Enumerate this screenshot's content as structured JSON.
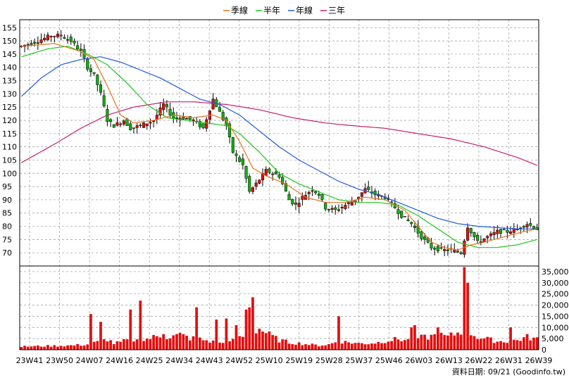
{
  "chart_data": {
    "type": "candlestick_with_volume",
    "legend": [
      {
        "name": "季線",
        "color": "#E8731E"
      },
      {
        "name": "半年",
        "color": "#1EC81E"
      },
      {
        "name": "年線",
        "color": "#1E5AE0"
      },
      {
        "name": "三年",
        "color": "#C81E6E"
      }
    ],
    "colors": {
      "up": "#E01010",
      "down": "#10B010",
      "grid": "#999999",
      "volume": "#E01010"
    },
    "price_axis": {
      "ylim": [
        65,
        158
      ],
      "ticks": [
        70,
        75,
        80,
        85,
        90,
        95,
        100,
        105,
        110,
        115,
        120,
        125,
        130,
        135,
        140,
        145,
        150,
        155
      ]
    },
    "volume_axis": {
      "ylim": [
        0,
        37500
      ],
      "ticks": [
        0,
        5000,
        10000,
        15000,
        20000,
        25000,
        30000,
        35000
      ],
      "tick_labels": [
        "0",
        "5,000",
        "10,000",
        "15,000",
        "20,000",
        "25,000",
        "30,000",
        "35,000"
      ]
    },
    "x_labels": [
      "23W41",
      "23W50",
      "24W07",
      "24W16",
      "24W25",
      "24W34",
      "24W43",
      "24W52",
      "25W10",
      "25W19",
      "25W28",
      "25W37",
      "25W46",
      "26W03",
      "26W13",
      "26W22",
      "26W31",
      "26W39"
    ],
    "weeks": 157,
    "close_keypoints": [
      [
        0,
        148
      ],
      [
        5,
        150
      ],
      [
        9,
        152
      ],
      [
        12,
        152
      ],
      [
        15,
        150
      ],
      [
        18,
        146
      ],
      [
        20,
        140
      ],
      [
        22,
        137
      ],
      [
        24,
        130
      ],
      [
        26,
        120
      ],
      [
        28,
        118
      ],
      [
        31,
        120
      ],
      [
        33,
        117
      ],
      [
        36,
        118
      ],
      [
        40,
        120
      ],
      [
        43,
        126
      ],
      [
        46,
        121
      ],
      [
        49,
        121
      ],
      [
        52,
        120
      ],
      [
        55,
        117
      ],
      [
        58,
        128
      ],
      [
        62,
        118
      ],
      [
        64,
        108
      ],
      [
        67,
        103
      ],
      [
        69,
        93
      ],
      [
        71,
        96
      ],
      [
        74,
        101
      ],
      [
        78,
        99
      ],
      [
        81,
        90
      ],
      [
        83,
        88
      ],
      [
        85,
        91
      ],
      [
        88,
        94
      ],
      [
        90,
        92
      ],
      [
        92,
        87
      ],
      [
        95,
        86
      ],
      [
        98,
        88
      ],
      [
        101,
        90
      ],
      [
        104,
        94
      ],
      [
        107,
        92
      ],
      [
        110,
        91
      ],
      [
        113,
        87
      ],
      [
        115,
        84
      ],
      [
        118,
        81
      ],
      [
        121,
        76
      ],
      [
        124,
        72
      ],
      [
        127,
        71
      ],
      [
        130,
        71
      ],
      [
        133,
        70
      ],
      [
        135,
        80
      ],
      [
        138,
        74
      ],
      [
        141,
        76
      ],
      [
        144,
        78
      ],
      [
        147,
        78
      ],
      [
        150,
        79
      ],
      [
        153,
        81
      ],
      [
        156,
        79
      ]
    ],
    "ma_quarter_keypoints": [
      [
        0,
        148
      ],
      [
        10,
        149
      ],
      [
        18,
        146
      ],
      [
        22,
        143
      ],
      [
        26,
        133
      ],
      [
        30,
        122
      ],
      [
        34,
        119
      ],
      [
        40,
        120
      ],
      [
        46,
        122
      ],
      [
        52,
        121
      ],
      [
        58,
        122
      ],
      [
        62,
        120
      ],
      [
        66,
        112
      ],
      [
        70,
        102
      ],
      [
        74,
        99
      ],
      [
        80,
        96
      ],
      [
        86,
        91
      ],
      [
        92,
        89
      ],
      [
        98,
        89
      ],
      [
        104,
        91
      ],
      [
        110,
        90
      ],
      [
        116,
        86
      ],
      [
        120,
        80
      ],
      [
        124,
        74
      ],
      [
        128,
        72
      ],
      [
        132,
        71
      ],
      [
        136,
        73
      ],
      [
        140,
        74
      ],
      [
        146,
        76
      ],
      [
        152,
        78
      ],
      [
        156,
        79
      ]
    ],
    "ma_half_keypoints": [
      [
        0,
        144
      ],
      [
        8,
        147
      ],
      [
        14,
        148
      ],
      [
        20,
        145
      ],
      [
        26,
        141
      ],
      [
        32,
        134
      ],
      [
        38,
        126
      ],
      [
        44,
        121
      ],
      [
        50,
        120
      ],
      [
        56,
        119
      ],
      [
        62,
        118
      ],
      [
        66,
        115
      ],
      [
        72,
        108
      ],
      [
        78,
        100
      ],
      [
        84,
        96
      ],
      [
        90,
        93
      ],
      [
        96,
        90
      ],
      [
        102,
        89
      ],
      [
        108,
        89
      ],
      [
        114,
        88
      ],
      [
        120,
        84
      ],
      [
        126,
        79
      ],
      [
        132,
        74
      ],
      [
        138,
        72
      ],
      [
        144,
        72
      ],
      [
        150,
        73
      ],
      [
        156,
        75
      ]
    ],
    "ma_year_keypoints": [
      [
        0,
        129
      ],
      [
        6,
        136
      ],
      [
        12,
        141
      ],
      [
        18,
        143
      ],
      [
        24,
        144
      ],
      [
        30,
        142
      ],
      [
        36,
        139
      ],
      [
        42,
        136
      ],
      [
        48,
        132
      ],
      [
        54,
        128
      ],
      [
        60,
        126
      ],
      [
        66,
        122
      ],
      [
        72,
        116
      ],
      [
        78,
        110
      ],
      [
        84,
        105
      ],
      [
        90,
        101
      ],
      [
        96,
        97
      ],
      [
        102,
        94
      ],
      [
        108,
        92
      ],
      [
        114,
        89
      ],
      [
        120,
        86
      ],
      [
        126,
        83
      ],
      [
        132,
        81
      ],
      [
        138,
        80
      ],
      [
        144,
        79.5
      ],
      [
        150,
        79
      ],
      [
        156,
        79
      ]
    ],
    "ma_3year_keypoints": [
      [
        0,
        104
      ],
      [
        10,
        111
      ],
      [
        18,
        117
      ],
      [
        26,
        122
      ],
      [
        34,
        125
      ],
      [
        44,
        127
      ],
      [
        52,
        127
      ],
      [
        62,
        126
      ],
      [
        72,
        124
      ],
      [
        82,
        121
      ],
      [
        92,
        119
      ],
      [
        100,
        118
      ],
      [
        110,
        117
      ],
      [
        120,
        115
      ],
      [
        130,
        113
      ],
      [
        140,
        110
      ],
      [
        150,
        106
      ],
      [
        156,
        103
      ]
    ],
    "volume_keypoints": [
      [
        0,
        1500
      ],
      [
        8,
        1800
      ],
      [
        15,
        2000
      ],
      [
        20,
        2500
      ],
      [
        24,
        4000
      ],
      [
        26,
        5000
      ],
      [
        28,
        3000
      ],
      [
        30,
        3500
      ],
      [
        33,
        5000
      ],
      [
        36,
        4000
      ],
      [
        39,
        5500
      ],
      [
        42,
        6500
      ],
      [
        45,
        6000
      ],
      [
        48,
        7000
      ],
      [
        51,
        5500
      ],
      [
        54,
        5000
      ],
      [
        57,
        4000
      ],
      [
        60,
        3000
      ],
      [
        63,
        3500
      ],
      [
        66,
        5500
      ],
      [
        69,
        8000
      ],
      [
        72,
        10000
      ],
      [
        75,
        7000
      ],
      [
        78,
        4500
      ],
      [
        81,
        3500
      ],
      [
        84,
        3000
      ],
      [
        87,
        2500
      ],
      [
        90,
        2000
      ],
      [
        93,
        2500
      ],
      [
        96,
        4000
      ],
      [
        99,
        3500
      ],
      [
        102,
        3000
      ],
      [
        105,
        3000
      ],
      [
        108,
        3500
      ],
      [
        111,
        4500
      ],
      [
        114,
        5000
      ],
      [
        117,
        4500
      ],
      [
        120,
        5500
      ],
      [
        123,
        6000
      ],
      [
        126,
        7000
      ],
      [
        129,
        6000
      ],
      [
        132,
        8000
      ],
      [
        135,
        9000
      ],
      [
        138,
        6000
      ],
      [
        141,
        5000
      ],
      [
        144,
        4000
      ],
      [
        147,
        4000
      ],
      [
        150,
        4500
      ],
      [
        153,
        6000
      ],
      [
        156,
        5000
      ]
    ],
    "volume_spikes": [
      [
        21,
        16000
      ],
      [
        24,
        12500
      ],
      [
        33,
        18000
      ],
      [
        36,
        22000
      ],
      [
        43,
        7000
      ],
      [
        53,
        19000
      ],
      [
        59,
        13500
      ],
      [
        62,
        14000
      ],
      [
        65,
        11000
      ],
      [
        68,
        18000
      ],
      [
        69,
        19000
      ],
      [
        70,
        23500
      ],
      [
        96,
        15000
      ],
      [
        118,
        10000
      ],
      [
        119,
        11000
      ],
      [
        126,
        10000
      ],
      [
        134,
        37000
      ],
      [
        135,
        30000
      ],
      [
        148,
        10000
      ]
    ],
    "source_label": "資料日期: 09/21  (Goodinfo.tw)"
  }
}
